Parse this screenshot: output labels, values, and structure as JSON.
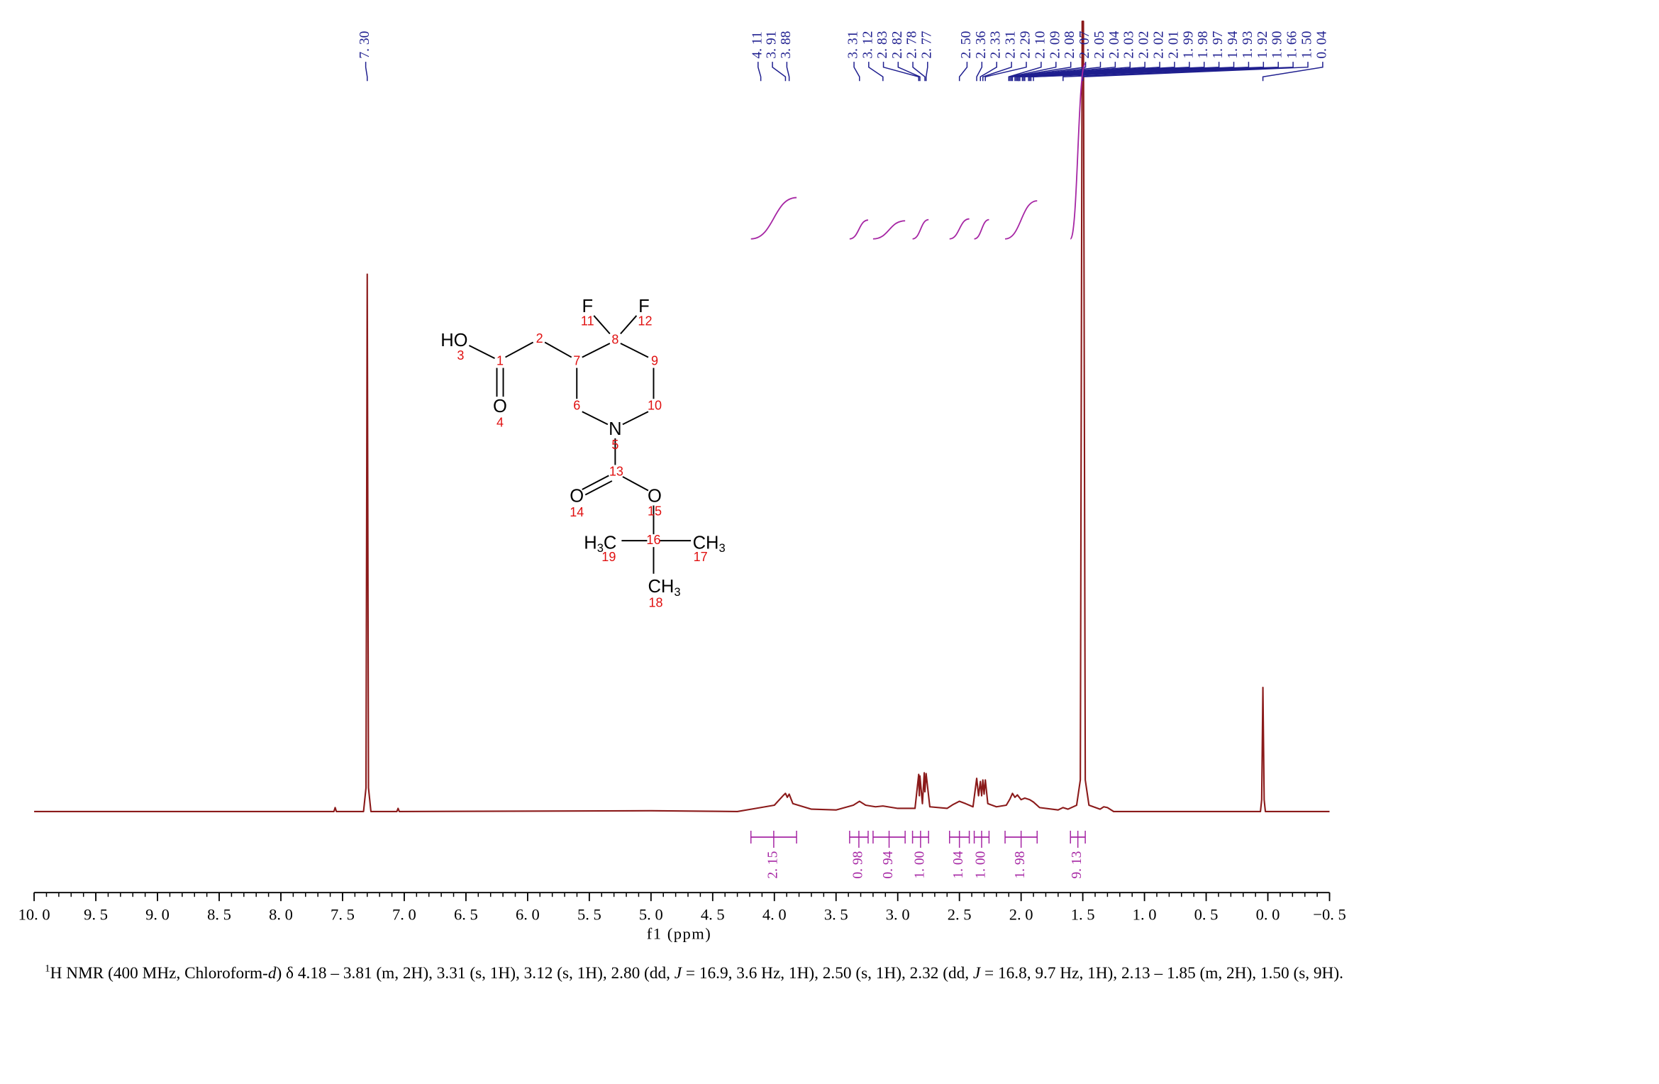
{
  "chart_data": {
    "type": "line",
    "xlabel": "f1 (ppm)",
    "xlim": [
      10.0,
      -0.5
    ],
    "xticks": [
      {
        "value": 10.0,
        "label": "10. 0"
      },
      {
        "value": 9.5,
        "label": "9. 5"
      },
      {
        "value": 9.0,
        "label": "9. 0"
      },
      {
        "value": 8.5,
        "label": "8. 5"
      },
      {
        "value": 8.0,
        "label": "8. 0"
      },
      {
        "value": 7.5,
        "label": "7. 5"
      },
      {
        "value": 7.0,
        "label": "7. 0"
      },
      {
        "value": 6.5,
        "label": "6. 5"
      },
      {
        "value": 6.0,
        "label": "6. 0"
      },
      {
        "value": 5.5,
        "label": "5. 5"
      },
      {
        "value": 5.0,
        "label": "5. 0"
      },
      {
        "value": 4.5,
        "label": "4. 5"
      },
      {
        "value": 4.0,
        "label": "4. 0"
      },
      {
        "value": 3.5,
        "label": "3. 5"
      },
      {
        "value": 3.0,
        "label": "3. 0"
      },
      {
        "value": 2.5,
        "label": "2. 5"
      },
      {
        "value": 2.0,
        "label": "2. 0"
      },
      {
        "value": 1.5,
        "label": "1. 5"
      },
      {
        "value": 1.0,
        "label": "1. 0"
      },
      {
        "value": 0.5,
        "label": "0. 5"
      },
      {
        "value": 0.0,
        "label": "0. 0"
      },
      {
        "value": -0.5,
        "label": "−0. 5"
      }
    ],
    "minor_xtick_step": 0.1,
    "ylim": [
      0,
      100
    ],
    "x": [
      10.0,
      7.57,
      7.56,
      7.55,
      7.33,
      7.31,
      7.3,
      7.29,
      7.27,
      7.06,
      7.05,
      7.04,
      5.0,
      4.3,
      4.15,
      4.0,
      3.93,
      3.91,
      3.895,
      3.88,
      3.85,
      3.7,
      3.5,
      3.36,
      3.31,
      3.26,
      3.18,
      3.12,
      3.0,
      2.86,
      2.83,
      2.825,
      2.82,
      2.8,
      2.785,
      2.78,
      2.77,
      2.74,
      2.6,
      2.55,
      2.5,
      2.45,
      2.39,
      2.36,
      2.345,
      2.33,
      2.32,
      2.31,
      2.3,
      2.29,
      2.27,
      2.2,
      2.12,
      2.09,
      2.07,
      2.05,
      2.03,
      2.0,
      1.97,
      1.93,
      1.9,
      1.85,
      1.7,
      1.66,
      1.62,
      1.55,
      1.52,
      1.505,
      1.495,
      1.48,
      1.45,
      1.36,
      1.33,
      1.3,
      1.25,
      0.06,
      0.05,
      0.04,
      0.03,
      0.02,
      -0.5
    ],
    "series": [
      {
        "color": "#8b1a1a",
        "values": [
          0,
          0,
          0.5,
          0,
          0,
          3,
          68,
          3,
          0,
          0,
          0.4,
          0,
          0.1,
          0,
          0.4,
          0.8,
          2,
          2.3,
          1.8,
          2.2,
          1,
          0.3,
          0.2,
          0.8,
          1.3,
          0.8,
          0.6,
          0.7,
          0.4,
          0.4,
          4.7,
          2,
          4.5,
          1,
          4.9,
          2.5,
          4.8,
          0.6,
          0.4,
          0.9,
          1.3,
          1,
          0.6,
          4.2,
          2,
          3.8,
          2,
          4,
          2.2,
          4,
          1,
          0.6,
          0.8,
          1.6,
          2.3,
          1.8,
          2.1,
          1.5,
          1.7,
          1.5,
          1.2,
          0.5,
          0.2,
          0.5,
          0.3,
          0.8,
          4,
          100,
          100,
          4,
          0.8,
          0.3,
          0.6,
          0.5,
          0,
          0,
          1.5,
          15.7,
          1.5,
          0,
          0
        ]
      }
    ],
    "peak_color": "#1f1f8f",
    "peaks": [
      {
        "value": 7.3,
        "label": "7. 30"
      },
      {
        "value": 4.11,
        "label": "4. 11"
      },
      {
        "value": 3.91,
        "label": "3. 91"
      },
      {
        "value": 3.88,
        "label": "3. 88"
      },
      {
        "value": 3.31,
        "label": "3. 31"
      },
      {
        "value": 3.12,
        "label": "3. 12"
      },
      {
        "value": 2.83,
        "label": "2. 83"
      },
      {
        "value": 2.82,
        "label": "2. 82"
      },
      {
        "value": 2.78,
        "label": "2. 78"
      },
      {
        "value": 2.77,
        "label": "2. 77"
      },
      {
        "value": 2.5,
        "label": "2. 50"
      },
      {
        "value": 2.36,
        "label": "2. 36"
      },
      {
        "value": 2.33,
        "label": "2. 33"
      },
      {
        "value": 2.31,
        "label": "2. 31"
      },
      {
        "value": 2.29,
        "label": "2. 29"
      },
      {
        "value": 2.1,
        "label": "2. 10"
      },
      {
        "value": 2.09,
        "label": "2. 09"
      },
      {
        "value": 2.08,
        "label": "2. 08"
      },
      {
        "value": 2.07,
        "label": "2. 07"
      },
      {
        "value": 2.05,
        "label": "2. 05"
      },
      {
        "value": 2.04,
        "label": "2. 04"
      },
      {
        "value": 2.03,
        "label": "2. 03"
      },
      {
        "value": 2.02,
        "label": "2. 02"
      },
      {
        "value": 2.02,
        "label": "2. 02"
      },
      {
        "value": 2.01,
        "label": "2. 01"
      },
      {
        "value": 1.99,
        "label": "1. 99"
      },
      {
        "value": 1.98,
        "label": "1. 98"
      },
      {
        "value": 1.97,
        "label": "1. 97"
      },
      {
        "value": 1.94,
        "label": "1. 94"
      },
      {
        "value": 1.93,
        "label": "1. 93"
      },
      {
        "value": 1.92,
        "label": "1. 92"
      },
      {
        "value": 1.9,
        "label": "1. 90"
      },
      {
        "value": 1.66,
        "label": "1. 66"
      },
      {
        "value": 1.5,
        "label": "1. 50"
      },
      {
        "value": 0.04,
        "label": "0. 04"
      }
    ],
    "integral_color": "#a626a4",
    "integrals": [
      {
        "from": 4.19,
        "to": 3.82,
        "value": 2.15,
        "label": "2. 15"
      },
      {
        "from": 3.39,
        "to": 3.24,
        "value": 0.98,
        "label": "0. 98"
      },
      {
        "from": 3.2,
        "to": 2.94,
        "value": 0.94,
        "label": "0. 94"
      },
      {
        "from": 2.88,
        "to": 2.75,
        "value": 1.0,
        "label": "1. 00"
      },
      {
        "from": 2.58,
        "to": 2.42,
        "value": 1.04,
        "label": "1. 04"
      },
      {
        "from": 2.38,
        "to": 2.26,
        "value": 1.0,
        "label": "1. 00"
      },
      {
        "from": 2.13,
        "to": 1.87,
        "value": 1.98,
        "label": "1. 98"
      },
      {
        "from": 1.6,
        "to": 1.48,
        "value": 9.13,
        "label": "9. 13"
      }
    ]
  },
  "structure": {
    "atoms": [
      [
        "HO"
      ],
      [
        "O"
      ],
      [
        "F"
      ],
      [
        "F"
      ],
      [
        "N"
      ],
      [
        "O"
      ],
      [
        "O"
      ],
      [
        "H",
        "3",
        "C"
      ],
      [
        "CH",
        "3"
      ],
      [
        "CH",
        "3"
      ]
    ],
    "numbers": [
      1,
      2,
      3,
      4,
      5,
      6,
      7,
      8,
      9,
      10,
      11,
      12,
      13,
      14,
      15,
      16,
      17,
      18,
      19
    ]
  },
  "caption": [
    "1",
    "H NMR (400 MHz, Chloroform-",
    "d",
    ") δ 4.18 – 3.81 (m, 2H), 3.31 (s, 1H), 3.12 (s, 1H), 2.80 (dd, ",
    "J",
    " = 16.9, 3.6 Hz, 1H), 2.50 (s, 1H), 2.32 (dd, ",
    "J",
    " = 16.8, 9.7 Hz, 1H), 2.13 – 1.85 (m, 2H), 1.50 (s, 9H)."
  ]
}
